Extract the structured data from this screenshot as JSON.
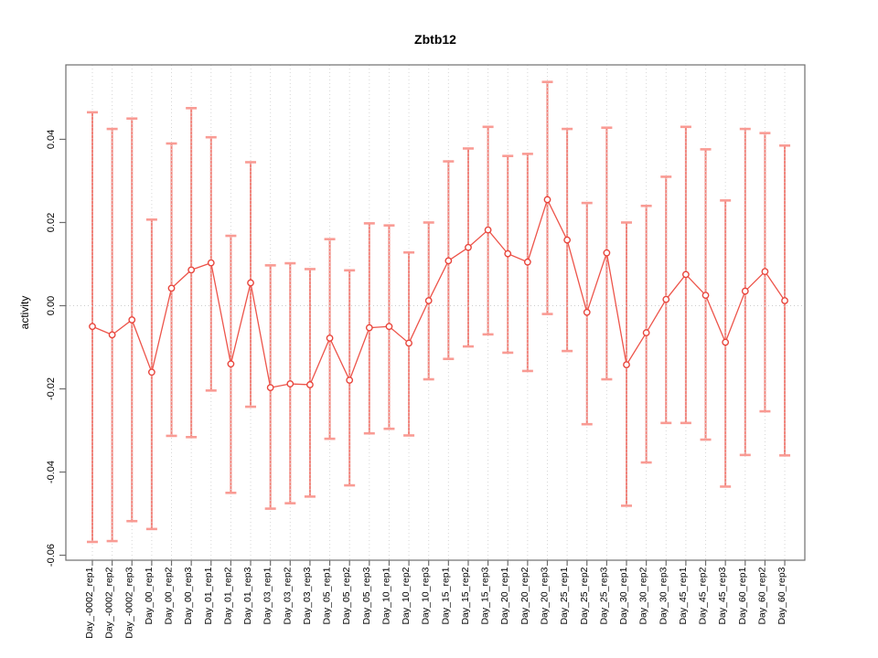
{
  "title": "Zbtb12",
  "ylabel": "activity",
  "chart_data": {
    "type": "scatter",
    "title": "Zbtb12",
    "xlabel": "",
    "ylabel": "activity",
    "legend": "none",
    "grid": "dotted vertical line at each category; dotted horizontal line at y=0",
    "ylim": [
      -0.0612,
      0.0579
    ],
    "ytick_values": [
      0.04,
      0.02,
      0.0,
      -0.02,
      -0.04,
      -0.06
    ],
    "ytick_labels": [
      "0.04",
      "0.02",
      "0.00",
      "-0.02",
      "-0.04",
      "-0.06"
    ],
    "categories": [
      "Day_-0002_rep1",
      "Day_-0002_rep2",
      "Day_-0002_rep3",
      "Day_00_rep1",
      "Day_00_rep2",
      "Day_00_rep3",
      "Day_01_rep1",
      "Day_01_rep2",
      "Day_01_rep3",
      "Day_03_rep1",
      "Day_03_rep2",
      "Day_03_rep3",
      "Day_05_rep1",
      "Day_05_rep2",
      "Day_05_rep3",
      "Day_10_rep1",
      "Day_10_rep2",
      "Day_10_rep3",
      "Day_15_rep1",
      "Day_15_rep2",
      "Day_15_rep3",
      "Day_20_rep1",
      "Day_20_rep2",
      "Day_20_rep3",
      "Day_25_rep1",
      "Day_25_rep2",
      "Day_25_rep3",
      "Day_30_rep1",
      "Day_30_rep2",
      "Day_30_rep3",
      "Day_45_rep1",
      "Day_45_rep2",
      "Day_45_rep3",
      "Day_60_rep1",
      "Day_60_rep2",
      "Day_60_rep3"
    ],
    "series": [
      {
        "name": "activity",
        "values": [
          -0.005,
          -0.007,
          -0.0034,
          -0.016,
          0.0042,
          0.0086,
          0.0103,
          -0.014,
          0.0055,
          -0.0197,
          -0.0188,
          -0.019,
          -0.0078,
          -0.0179,
          -0.0053,
          -0.005,
          -0.009,
          0.0012,
          0.0108,
          0.014,
          0.0182,
          0.0125,
          0.0105,
          0.0255,
          0.0158,
          -0.0016,
          0.0127,
          -0.0142,
          -0.0065,
          0.0015,
          0.0075,
          0.0025,
          -0.0088,
          0.0035,
          0.0082,
          0.0012
        ],
        "error_high": [
          0.0465,
          0.0425,
          0.045,
          0.0207,
          0.039,
          0.0475,
          0.0405,
          0.0168,
          0.0345,
          0.0097,
          0.0102,
          0.0088,
          0.016,
          0.0085,
          0.0198,
          0.0193,
          0.0128,
          0.02,
          0.0347,
          0.0378,
          0.043,
          0.036,
          0.0365,
          0.0538,
          0.0425,
          0.0247,
          0.0428,
          0.02,
          0.024,
          0.031,
          0.043,
          0.0376,
          0.0253,
          0.0425,
          0.0415,
          0.0385
        ],
        "error_low": [
          -0.0568,
          -0.0566,
          -0.0518,
          -0.0537,
          -0.0313,
          -0.0316,
          -0.0204,
          -0.045,
          -0.0243,
          -0.0488,
          -0.0475,
          -0.0459,
          -0.032,
          -0.0432,
          -0.0307,
          -0.0296,
          -0.0312,
          -0.0177,
          -0.0128,
          -0.0098,
          -0.0069,
          -0.0113,
          -0.0157,
          -0.002,
          -0.0109,
          -0.0285,
          -0.0177,
          -0.0481,
          -0.0377,
          -0.0282,
          -0.0282,
          -0.0322,
          -0.0435,
          -0.0359,
          -0.0254,
          -0.036
        ]
      }
    ],
    "colors": {
      "point": "#e8453c",
      "series_line": "#ed544a",
      "error_bar": "#f2837b",
      "error_cap": "#f99b94",
      "grid": "#d6d6d6",
      "zero_line": "#cccccc",
      "axis": "#6e6e6e",
      "text": "#000000"
    }
  }
}
